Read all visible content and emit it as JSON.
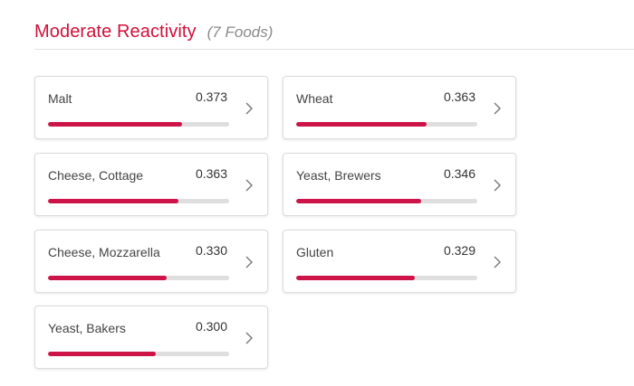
{
  "section": {
    "title": "Moderate Reactivity",
    "count_label": "(7 Foods)"
  },
  "colors": {
    "accent": "#d0103a",
    "bar_fill": "#cc1448",
    "bar_track": "#dedede"
  },
  "foods": [
    {
      "name": "Malt",
      "score": "0.373",
      "fill_fraction": 0.74
    },
    {
      "name": "Wheat",
      "score": "0.363",
      "fill_fraction": 0.72
    },
    {
      "name": "Cheese, Cottage",
      "score": "0.363",
      "fill_fraction": 0.72
    },
    {
      "name": "Yeast, Brewers",
      "score": "0.346",
      "fill_fraction": 0.69
    },
    {
      "name": "Cheese, Mozzarella",
      "score": "0.330",
      "fill_fraction": 0.655
    },
    {
      "name": "Gluten",
      "score": "0.329",
      "fill_fraction": 0.655
    },
    {
      "name": "Yeast, Bakers",
      "score": "0.300",
      "fill_fraction": 0.595
    }
  ],
  "icons": {
    "card_arrow": "chevron-right-icon"
  }
}
